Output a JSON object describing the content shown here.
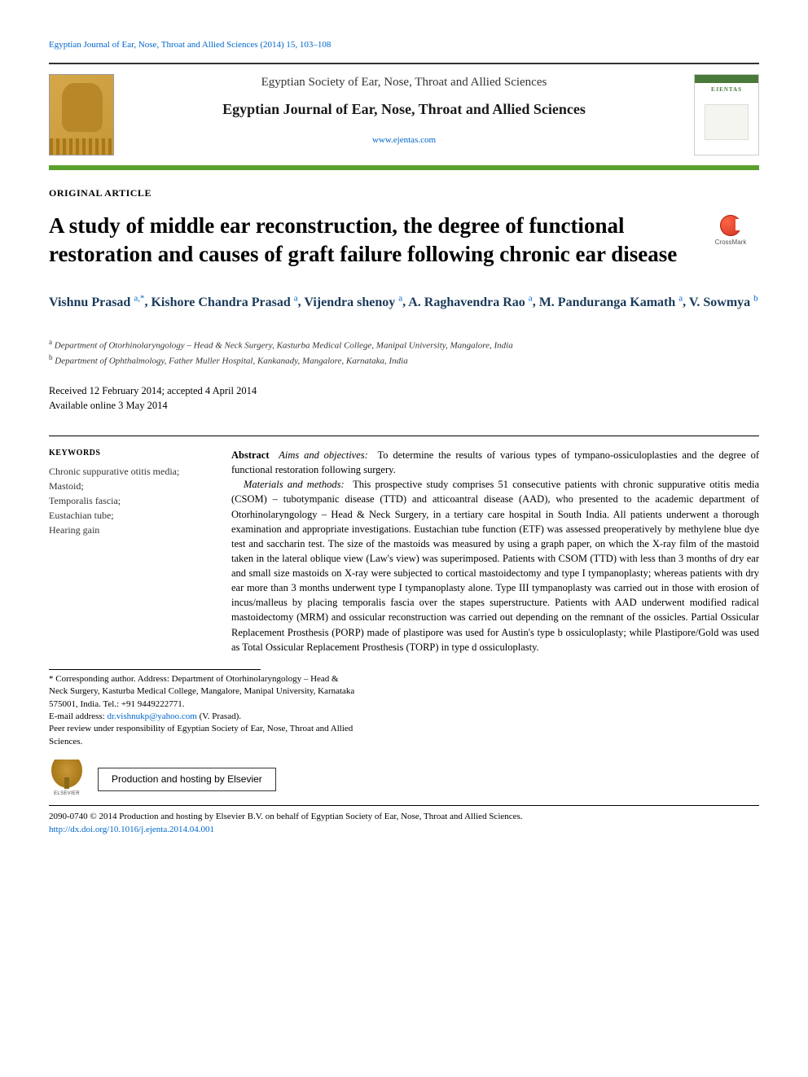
{
  "citation": "Egyptian Journal of Ear, Nose, Throat and Allied Sciences (2014) 15, 103–108",
  "header": {
    "society": "Egyptian Society of Ear, Nose, Throat and Allied Sciences",
    "journal": "Egyptian Journal of Ear, Nose, Throat and Allied Sciences",
    "url": "www.ejentas.com",
    "cover_label": "EJENTAS"
  },
  "article_type": "ORIGINAL ARTICLE",
  "title": "A study of middle ear reconstruction, the degree of functional restoration and causes of graft failure following chronic ear disease",
  "crossmark_label": "CrossMark",
  "authors": [
    {
      "name": "Vishnu Prasad",
      "sup": "a,*"
    },
    {
      "name": "Kishore Chandra Prasad",
      "sup": "a"
    },
    {
      "name": "Vijendra shenoy",
      "sup": "a"
    },
    {
      "name": "A. Raghavendra Rao",
      "sup": "a"
    },
    {
      "name": "M. Panduranga Kamath",
      "sup": "a"
    },
    {
      "name": "V. Sowmya",
      "sup": "b"
    }
  ],
  "affiliations": {
    "a": "Department of Otorhinolaryngology – Head & Neck Surgery, Kasturba Medical College, Manipal University, Mangalore, India",
    "b": "Department of Ophthalmology, Father Muller Hospital, Kankanady, Mangalore, Karnataka, India"
  },
  "dates": {
    "received_accepted": "Received 12 February 2014; accepted 4 April 2014",
    "online": "Available online 3 May 2014"
  },
  "keywords_heading": "KEYWORDS",
  "keywords": [
    "Chronic suppurative otitis media;",
    "Mastoid;",
    "Temporalis fascia;",
    "Eustachian tube;",
    "Hearing gain"
  ],
  "abstract": {
    "label": "Abstract",
    "aims_label": "Aims and objectives:",
    "aims_text": "To determine the results of various types of tympano-ossiculoplasties and the degree of functional restoration following surgery.",
    "methods_label": "Materials and methods:",
    "methods_text": "This prospective study comprises 51 consecutive patients with chronic suppurative otitis media (CSOM) – tubotympanic disease (TTD) and atticoantral disease (AAD), who presented to the academic department of Otorhinolaryngology – Head & Neck Surgery, in a tertiary care hospital in South India. All patients underwent a thorough examination and appropriate investigations. Eustachian tube function (ETF) was assessed preoperatively by methylene blue dye test and saccharin test. The size of the mastoids was measured by using a graph paper, on which the X-ray film of the mastoid taken in the lateral oblique view (Law's view) was superimposed. Patients with CSOM (TTD) with less than 3 months of dry ear and small size mastoids on X-ray were subjected to cortical mastoidectomy and type I tympanoplasty; whereas patients with dry ear more than 3 months underwent type I tympanoplasty alone. Type III tympanoplasty was carried out in those with erosion of incus/malleus by placing temporalis fascia over the stapes superstructure. Patients with AAD underwent modified radical mastoidectomy (MRM) and ossicular reconstruction was carried out depending on the remnant of the ossicles. Partial Ossicular Replacement Prosthesis (PORP) made of plastipore was used for Austin's type b ossiculoplasty; while Plastipore/Gold was used as Total Ossicular Replacement Prosthesis (TORP) in type d ossiculoplasty."
  },
  "footnotes": {
    "corresponding": "* Corresponding author. Address: Department of Otorhinolaryngology – Head & Neck Surgery, Kasturba Medical College, Mangalore, Manipal University, Karnataka 575001, India. Tel.: +91 9449222771.",
    "email_label": "E-mail address:",
    "email": "dr.vishnukp@yahoo.com",
    "email_attr": " (V. Prasad).",
    "peer_review": "Peer review under responsibility of Egyptian Society of Ear, Nose, Throat and Allied Sciences."
  },
  "elsevier_label": "ELSEVIER",
  "hosting_text": "Production and hosting by Elsevier",
  "copyright": {
    "line1": "2090-0740 © 2014 Production and hosting by Elsevier B.V. on behalf of Egyptian Society of Ear, Nose, Throat and Allied Sciences.",
    "doi": "http://dx.doi.org/10.1016/j.ejenta.2014.04.001"
  },
  "colors": {
    "link": "#0066cc",
    "green_bar": "#5aa02c",
    "author": "#1a3a5a"
  }
}
